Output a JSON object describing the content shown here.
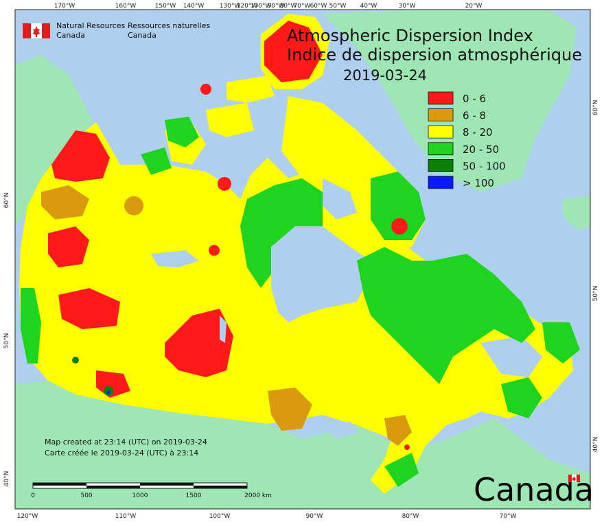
{
  "title": {
    "en": "Atmospheric Dispersion Index",
    "fr": "Indice de dispersion atmosphérique",
    "date": "2019-03-24"
  },
  "agency": {
    "en_line1": "Natural Resources",
    "en_line2": "Canada",
    "fr_line1": "Ressources naturelles",
    "fr_line2": "Canada"
  },
  "legend": [
    {
      "label": "0 - 6",
      "color": "#ff1a1a"
    },
    {
      "label": "6 - 8",
      "color": "#d99a0e"
    },
    {
      "label": "8 - 20",
      "color": "#ffff00"
    },
    {
      "label": "20 - 50",
      "color": "#1fd41f"
    },
    {
      "label": "50 - 100",
      "color": "#0a7f0a"
    },
    {
      "label": "> 100",
      "color": "#0a1aff"
    }
  ],
  "top_ticks": [
    "170°W",
    "160°W",
    "150°W",
    "140°W",
    "130°W",
    "120°W",
    "100°W",
    "90°W",
    "80°W",
    "70°W",
    "60°W",
    "50°W",
    "40°W",
    "30°W",
    "20°W"
  ],
  "bottom_ticks": [
    "120°W",
    "110°W",
    "100°W",
    "90°W",
    "80°W",
    "70°W"
  ],
  "left_ticks": [
    "60°N",
    "50°N",
    "40°N"
  ],
  "right_ticks": [
    "60°N",
    "50°N",
    "40°N"
  ],
  "note": {
    "en": "Map created at 23:14 (UTC) on 2019-03-24",
    "fr": "Carte créée le 2019-03-24 (UTC) à 23:14"
  },
  "scale": {
    "labels": [
      "0",
      "500",
      "1000",
      "1500",
      "2000 km"
    ]
  },
  "wordmark": "Canada",
  "colors": {
    "ocean": "#aecfee",
    "foreign_land": "#9ee6b4",
    "border": "#222222"
  }
}
